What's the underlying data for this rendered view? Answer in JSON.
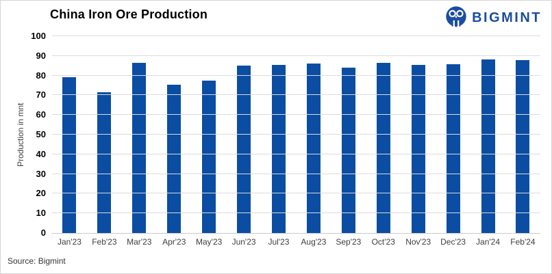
{
  "title": "China Iron Ore Production",
  "logo": {
    "text": "BIGMINT"
  },
  "source": "Source: Bigmint",
  "colors": {
    "bar": "#0A4DA2",
    "logo": "#1B4DA1",
    "grid": "#DBDBDB"
  },
  "chart_data": {
    "type": "bar",
    "categories": [
      "Jan'23",
      "Feb'23",
      "Mar'23",
      "Apr'23",
      "May'23",
      "Jun'23",
      "Jul'23",
      "Aug'23",
      "Sep'23",
      "Oct'23",
      "Nov'23",
      "Dec'23",
      "Jan'24",
      "Feb'24"
    ],
    "values": [
      79,
      71.4,
      86.3,
      75.2,
      77.6,
      85.2,
      85.5,
      86.2,
      84.1,
      86.3,
      85.4,
      85.8,
      88.2,
      88
    ],
    "title": "China Iron Ore Production",
    "xlabel": "",
    "ylabel": "Production in mnt",
    "ylim": [
      0,
      100
    ],
    "ytick_step": 10,
    "grid": true,
    "legend": false,
    "bar_color": "#0A4DA2"
  }
}
